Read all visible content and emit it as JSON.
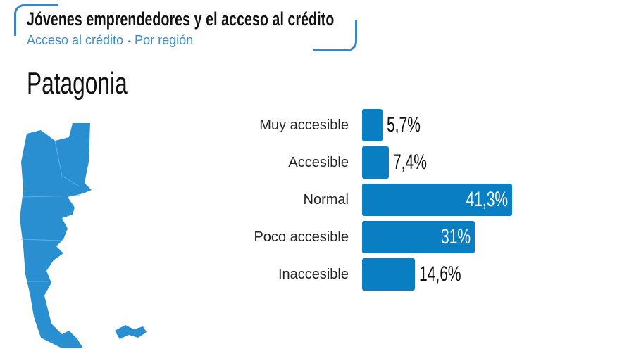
{
  "header": {
    "title": "Jóvenes emprendedores y el acceso al crédito",
    "subtitle": "Acceso al crédito - Por región"
  },
  "region_title": "Patagonia",
  "colors": {
    "bar": "#0a7ec2",
    "accent": "#3d83c9",
    "map": "#2a8fd0"
  },
  "chart_data": {
    "type": "bar",
    "orientation": "horizontal",
    "title": "Patagonia",
    "categories": [
      "Muy accesible",
      "Accesible",
      "Normal",
      "Poco accesible",
      "Inaccesible"
    ],
    "values": [
      5.7,
      7.4,
      41.3,
      31,
      14.6
    ],
    "labels": [
      "5,7%",
      "7,4%",
      "41,3%",
      "31%",
      "14,6%"
    ],
    "xlabel": "",
    "ylabel": "",
    "xlim": [
      0,
      45
    ],
    "grid": false
  }
}
